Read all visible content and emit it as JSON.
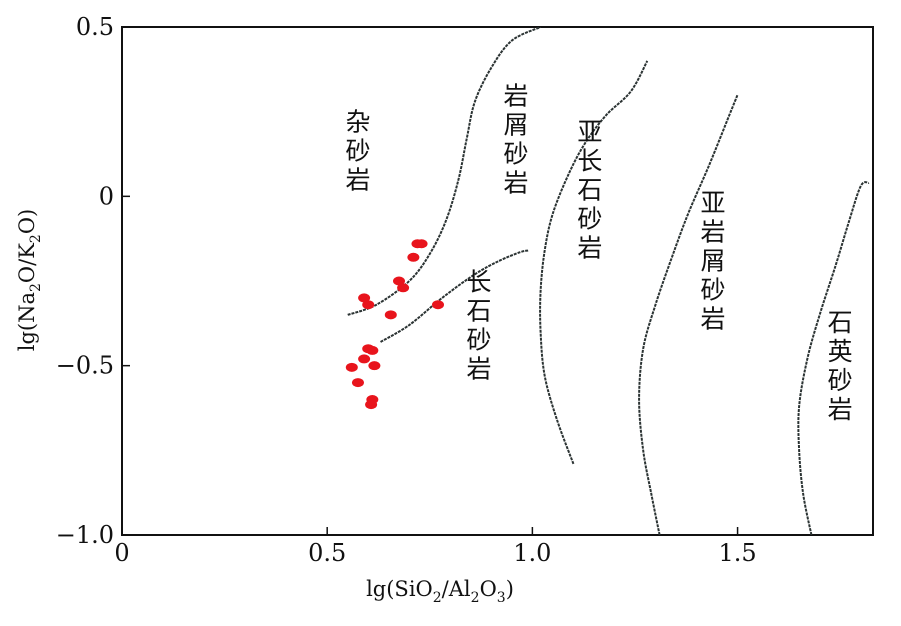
{
  "chart_data": {
    "type": "scatter",
    "title": "",
    "xlabel": {
      "main": "lg(SiO",
      "sub1": "2",
      "mid": "/Al",
      "sub2": "2",
      "mid2": "O",
      "sub3": "3",
      "end": ")"
    },
    "ylabel": {
      "main": "lg(Na",
      "sub1": "2",
      "mid": "O/K",
      "sub2": "2",
      "end": "O)"
    },
    "xlim": [
      0,
      1.83
    ],
    "ylim": [
      -1.0,
      0.5
    ],
    "xticks": [
      {
        "value": 0,
        "label": "0"
      },
      {
        "value": 0.5,
        "label": "0.5"
      },
      {
        "value": 1.0,
        "label": "1.0"
      },
      {
        "value": 1.5,
        "label": "1.5"
      }
    ],
    "yticks": [
      {
        "value": 0.5,
        "label": "0.5"
      },
      {
        "value": 0,
        "label": "0"
      },
      {
        "value": -0.5,
        "label": "−0.5"
      },
      {
        "value": -1.0,
        "label": "−1.0"
      }
    ],
    "grid": false,
    "point_color": "#e8141c",
    "line_color": "#2b3333",
    "points": [
      {
        "x": 0.73,
        "y": -0.14
      },
      {
        "x": 0.72,
        "y": -0.14
      },
      {
        "x": 0.71,
        "y": -0.18
      },
      {
        "x": 0.59,
        "y": -0.3
      },
      {
        "x": 0.6,
        "y": -0.32
      },
      {
        "x": 0.675,
        "y": -0.25
      },
      {
        "x": 0.685,
        "y": -0.27
      },
      {
        "x": 0.655,
        "y": -0.35
      },
      {
        "x": 0.77,
        "y": -0.32
      },
      {
        "x": 0.6,
        "y": -0.45
      },
      {
        "x": 0.61,
        "y": -0.455
      },
      {
        "x": 0.59,
        "y": -0.48
      },
      {
        "x": 0.56,
        "y": -0.505
      },
      {
        "x": 0.615,
        "y": -0.5
      },
      {
        "x": 0.575,
        "y": -0.55
      },
      {
        "x": 0.61,
        "y": -0.6
      },
      {
        "x": 0.607,
        "y": -0.615
      }
    ],
    "boundaries": [
      {
        "name": "b1",
        "points": [
          [
            0.55,
            -0.35
          ],
          [
            0.62,
            -0.32
          ],
          [
            0.7,
            -0.25
          ],
          [
            0.75,
            -0.17
          ],
          [
            0.79,
            -0.07
          ],
          [
            0.82,
            0.05
          ],
          [
            0.84,
            0.17
          ],
          [
            0.86,
            0.28
          ],
          [
            0.9,
            0.38
          ],
          [
            0.95,
            0.46
          ],
          [
            1.02,
            0.5
          ]
        ]
      },
      {
        "name": "b2",
        "points": [
          [
            0.63,
            -0.43
          ],
          [
            0.7,
            -0.38
          ],
          [
            0.78,
            -0.3
          ],
          [
            0.86,
            -0.23
          ],
          [
            0.92,
            -0.19
          ],
          [
            0.97,
            -0.165
          ],
          [
            0.99,
            -0.16
          ]
        ]
      },
      {
        "name": "b3",
        "points": [
          [
            1.1,
            -0.79
          ],
          [
            1.06,
            -0.66
          ],
          [
            1.03,
            -0.53
          ],
          [
            1.02,
            -0.4
          ],
          [
            1.02,
            -0.28
          ],
          [
            1.03,
            -0.16
          ],
          [
            1.05,
            -0.05
          ],
          [
            1.09,
            0.07
          ],
          [
            1.13,
            0.16
          ],
          [
            1.18,
            0.24
          ],
          [
            1.24,
            0.31
          ],
          [
            1.28,
            0.4
          ]
        ]
      },
      {
        "name": "b4",
        "points": [
          [
            1.31,
            -1.0
          ],
          [
            1.29,
            -0.88
          ],
          [
            1.27,
            -0.75
          ],
          [
            1.26,
            -0.6
          ],
          [
            1.27,
            -0.45
          ],
          [
            1.3,
            -0.32
          ],
          [
            1.34,
            -0.18
          ],
          [
            1.38,
            -0.05
          ],
          [
            1.43,
            0.09
          ],
          [
            1.48,
            0.24
          ],
          [
            1.5,
            0.3
          ]
        ]
      },
      {
        "name": "b5",
        "points": [
          [
            1.68,
            -1.0
          ],
          [
            1.66,
            -0.88
          ],
          [
            1.65,
            -0.75
          ],
          [
            1.65,
            -0.62
          ],
          [
            1.67,
            -0.48
          ],
          [
            1.7,
            -0.35
          ],
          [
            1.74,
            -0.2
          ],
          [
            1.77,
            -0.08
          ],
          [
            1.8,
            0.03
          ],
          [
            1.82,
            0.04
          ]
        ]
      }
    ],
    "region_labels": [
      {
        "text": [
          "杂",
          "砂",
          "岩"
        ],
        "x": 0.575,
        "y": 0.135
      },
      {
        "text": [
          "岩",
          "屑",
          "砂",
          "岩"
        ],
        "x": 0.96,
        "y": 0.17
      },
      {
        "text": [
          "亚",
          "长",
          "石",
          "砂",
          "岩"
        ],
        "x": 1.14,
        "y": 0.02
      },
      {
        "text": [
          "长",
          "石",
          "砂",
          "岩"
        ],
        "x": 0.87,
        "y": -0.38
      },
      {
        "text": [
          "亚",
          "岩",
          "屑",
          "砂",
          "岩"
        ],
        "x": 1.44,
        "y": -0.19
      },
      {
        "text": [
          "石",
          "英",
          "砂",
          "岩"
        ],
        "x": 1.75,
        "y": -0.5
      }
    ]
  }
}
